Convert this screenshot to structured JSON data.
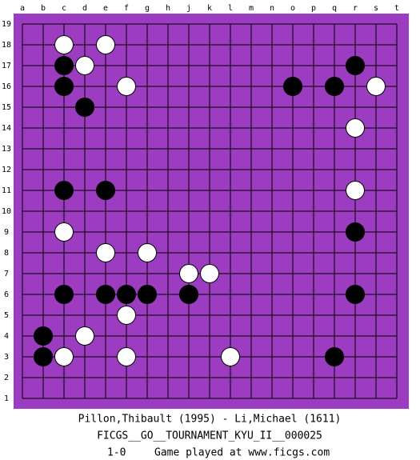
{
  "board": {
    "columns": [
      "a",
      "b",
      "c",
      "d",
      "e",
      "f",
      "g",
      "h",
      "j",
      "k",
      "l",
      "m",
      "n",
      "o",
      "p",
      "q",
      "r",
      "s",
      "t"
    ],
    "rows": [
      19,
      18,
      17,
      16,
      15,
      14,
      13,
      12,
      11,
      10,
      9,
      8,
      7,
      6,
      5,
      4,
      3,
      2,
      1
    ],
    "color": "#9c3cc0",
    "stones": [
      {
        "color": "white",
        "col": "c",
        "row": 18
      },
      {
        "color": "white",
        "col": "e",
        "row": 18
      },
      {
        "color": "white",
        "col": "d",
        "row": 17
      },
      {
        "color": "white",
        "col": "f",
        "row": 16
      },
      {
        "color": "white",
        "col": "s",
        "row": 16
      },
      {
        "color": "white",
        "col": "r",
        "row": 14
      },
      {
        "color": "white",
        "col": "r",
        "row": 11
      },
      {
        "color": "white",
        "col": "c",
        "row": 9
      },
      {
        "color": "white",
        "col": "e",
        "row": 8
      },
      {
        "color": "white",
        "col": "g",
        "row": 8
      },
      {
        "color": "white",
        "col": "j",
        "row": 7
      },
      {
        "color": "white",
        "col": "k",
        "row": 7
      },
      {
        "color": "white",
        "col": "f",
        "row": 5
      },
      {
        "color": "white",
        "col": "d",
        "row": 4
      },
      {
        "color": "white",
        "col": "c",
        "row": 3
      },
      {
        "color": "white",
        "col": "f",
        "row": 3
      },
      {
        "color": "white",
        "col": "l",
        "row": 3
      },
      {
        "color": "black",
        "col": "c",
        "row": 17
      },
      {
        "color": "black",
        "col": "r",
        "row": 17
      },
      {
        "color": "black",
        "col": "c",
        "row": 16
      },
      {
        "color": "black",
        "col": "o",
        "row": 16
      },
      {
        "color": "black",
        "col": "q",
        "row": 16
      },
      {
        "color": "black",
        "col": "d",
        "row": 15
      },
      {
        "color": "black",
        "col": "c",
        "row": 11
      },
      {
        "color": "black",
        "col": "e",
        "row": 11
      },
      {
        "color": "black",
        "col": "r",
        "row": 9
      },
      {
        "color": "black",
        "col": "c",
        "row": 6
      },
      {
        "color": "black",
        "col": "e",
        "row": 6
      },
      {
        "color": "black",
        "col": "f",
        "row": 6
      },
      {
        "color": "black",
        "col": "g",
        "row": 6
      },
      {
        "color": "black",
        "col": "j",
        "row": 6
      },
      {
        "color": "black",
        "col": "r",
        "row": 6
      },
      {
        "color": "black",
        "col": "b",
        "row": 4
      },
      {
        "color": "black",
        "col": "b",
        "row": 3
      },
      {
        "color": "black",
        "col": "q",
        "row": 3
      }
    ]
  },
  "footer": {
    "players": "Pillon,Thibault (1995) - Li,Michael (1611)",
    "event": "FICGS__GO__TOURNAMENT_KYU_II__000025",
    "result": "1-0",
    "site": "Game played at www.ficgs.com"
  }
}
